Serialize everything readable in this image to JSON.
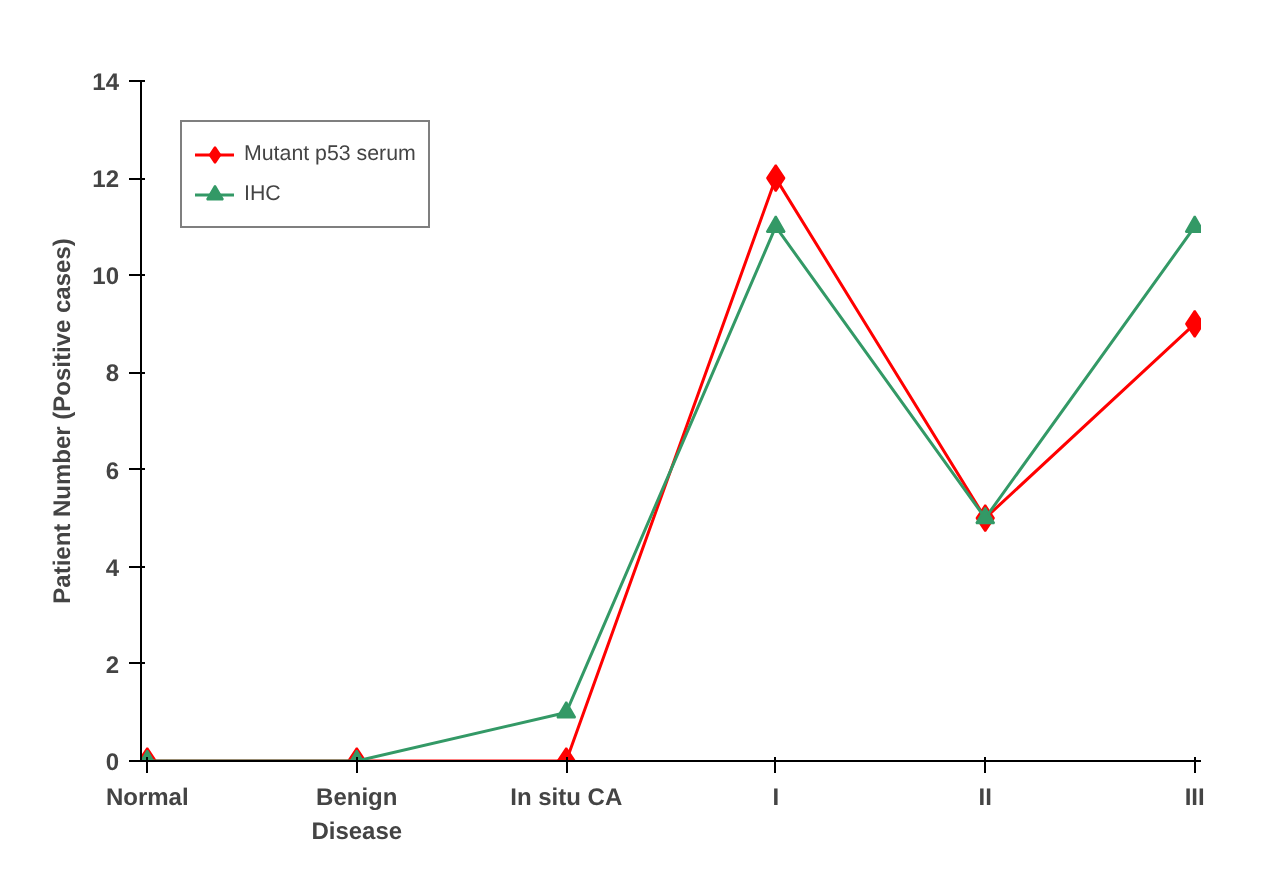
{
  "chart_data": {
    "type": "line",
    "ylabel": "Patient Number (Positive cases)",
    "categories": [
      "Normal",
      "Benign\nDisease",
      "In situ CA",
      "I",
      "II",
      "III"
    ],
    "series": [
      {
        "name": "Mutant p53 serum",
        "color": "#ff0000",
        "marker": "diamond",
        "values": [
          0,
          0,
          0,
          12,
          5,
          9
        ]
      },
      {
        "name": "IHC",
        "color": "#339966",
        "marker": "triangle",
        "values": [
          0,
          0,
          1,
          11,
          5,
          11
        ]
      }
    ],
    "ylim": [
      0,
      14
    ],
    "yticks": [
      0,
      2,
      4,
      6,
      8,
      10,
      12,
      14
    ],
    "grid": false,
    "legend": "top left",
    "line_style": "solid"
  }
}
